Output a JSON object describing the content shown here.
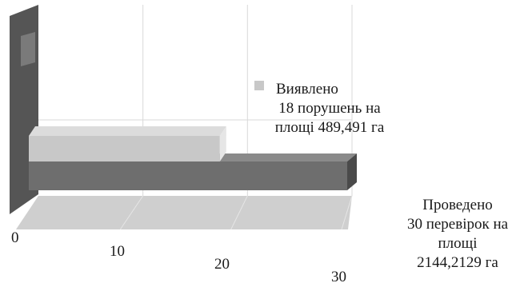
{
  "chart_data": {
    "type": "bar",
    "orientation": "horizontal",
    "style": "3d",
    "title": "",
    "xlabel": "",
    "ylabel": "",
    "xlim": [
      0,
      30
    ],
    "x_ticks": [
      "0",
      "10",
      "20",
      "30"
    ],
    "grid": true,
    "legend_position": "right",
    "colors": {
      "series_light": "#c8c8c8",
      "series_light_top": "#dcdcdc",
      "series_light_end": "#e6e6e6",
      "series_dark": "#6e6e6e",
      "series_dark_top": "#8a8a8a",
      "series_dark_end": "#4a4a4a",
      "back_wall": "#555555",
      "floor": "#cfcfcf"
    },
    "series": [
      {
        "key": "detected",
        "value": 18,
        "label_lines": [
          "Виявлено",
          "18 порушень на",
          "площі 489,491 га"
        ]
      },
      {
        "key": "conducted",
        "value": 30,
        "label_lines": [
          "Проведено",
          "30 перевірок на",
          "площі",
          "2144,2129 га"
        ]
      }
    ]
  }
}
